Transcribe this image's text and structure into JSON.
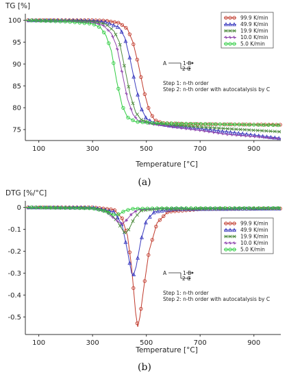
{
  "chart_data": [
    {
      "type": "line",
      "panel_label": "(a)",
      "ylabel": "TG [%]",
      "xlabel": "Temperature [°C]",
      "xlim": [
        50,
        1000
      ],
      "ylim": [
        72.5,
        101.5
      ],
      "xticks": [
        100,
        300,
        500,
        700,
        900
      ],
      "yticks": [
        75,
        80,
        85,
        90,
        95,
        100
      ],
      "legend_position": "top-right",
      "annotation": {
        "scheme_a": "A",
        "scheme_b": "1 B",
        "scheme_c": "2 C",
        "step1": "Step 1: n-th order",
        "step2": "Step 2: n-th order with autocatalysis by C"
      },
      "series": [
        {
          "name": "99.9 K/min",
          "color": "#c0392b",
          "marker": "circle",
          "points": [
            [
              50,
              100
            ],
            [
              200,
              100
            ],
            [
              300,
              100
            ],
            [
              350,
              99.9
            ],
            [
              400,
              99.4
            ],
            [
              430,
              98
            ],
            [
              450,
              95
            ],
            [
              470,
              90
            ],
            [
              490,
              84
            ],
            [
              510,
              79.5
            ],
            [
              530,
              77.2
            ],
            [
              560,
              76.5
            ],
            [
              650,
              76.3
            ],
            [
              800,
              76.2
            ],
            [
              1000,
              76.1
            ]
          ]
        },
        {
          "name": "49.9 K/min",
          "color": "#3b3bbf",
          "marker": "triangle",
          "points": [
            [
              50,
              100
            ],
            [
              200,
              100
            ],
            [
              300,
              99.9
            ],
            [
              350,
              99.6
            ],
            [
              400,
              98.3
            ],
            [
              420,
              96
            ],
            [
              440,
              91
            ],
            [
              460,
              85
            ],
            [
              480,
              80
            ],
            [
              500,
              77.5
            ],
            [
              530,
              76.5
            ],
            [
              600,
              75.8
            ],
            [
              700,
              75.2
            ],
            [
              800,
              74.5
            ],
            [
              1000,
              73
            ]
          ]
        },
        {
          "name": "19.9 K/min",
          "color": "#4c8a3c",
          "marker": "cross",
          "points": [
            [
              50,
              100
            ],
            [
              200,
              99.9
            ],
            [
              300,
              99.7
            ],
            [
              350,
              99.1
            ],
            [
              380,
              97.5
            ],
            [
              400,
              95
            ],
            [
              420,
              89
            ],
            [
              440,
              83
            ],
            [
              460,
              79
            ],
            [
              480,
              77.3
            ],
            [
              520,
              76.4
            ],
            [
              600,
              76
            ],
            [
              700,
              75.6
            ],
            [
              800,
              75.2
            ],
            [
              1000,
              74.5
            ]
          ]
        },
        {
          "name": "10.0 K/min",
          "color": "#8e44ad",
          "marker": "star",
          "points": [
            [
              50,
              100
            ],
            [
              200,
              99.8
            ],
            [
              300,
              99.5
            ],
            [
              340,
              98.8
            ],
            [
              370,
              97
            ],
            [
              390,
              94
            ],
            [
              410,
              88
            ],
            [
              430,
              82
            ],
            [
              450,
              78.5
            ],
            [
              470,
              77
            ],
            [
              520,
              76.3
            ],
            [
              600,
              75.6
            ],
            [
              700,
              74.8
            ],
            [
              800,
              73.9
            ],
            [
              1000,
              72.9
            ]
          ]
        },
        {
          "name": "5.0 K/min",
          "color": "#2ecc40",
          "marker": "circle",
          "points": [
            [
              50,
              100
            ],
            [
              200,
              99.7
            ],
            [
              300,
              99.2
            ],
            [
              330,
              98.3
            ],
            [
              350,
              96.5
            ],
            [
              370,
              93
            ],
            [
              390,
              86
            ],
            [
              410,
              80.5
            ],
            [
              430,
              77.8
            ],
            [
              460,
              76.8
            ],
            [
              520,
              76.5
            ],
            [
              600,
              76.4
            ],
            [
              800,
              76.2
            ],
            [
              1000,
              76
            ]
          ]
        }
      ]
    },
    {
      "type": "line",
      "panel_label": "(b)",
      "ylabel": "DTG [%/°C]",
      "xlabel": "Temperature [°C]",
      "xlim": [
        50,
        1000
      ],
      "ylim": [
        -0.58,
        0.03
      ],
      "xticks": [
        100,
        300,
        500,
        700,
        900
      ],
      "yticks": [
        0,
        -0.1,
        -0.2,
        -0.3,
        -0.4,
        -0.5
      ],
      "ytick_labels": [
        "0",
        "-0.1",
        "-0.2",
        "-0.3",
        "-0.4",
        "-0.5"
      ],
      "legend_position": "center-right",
      "annotation": {
        "scheme_a": "A",
        "scheme_b": "1 B",
        "scheme_c": "2 C",
        "step1": "Step 1: n-th order",
        "step2": "Step 2: n-th order with autocatalysis by C"
      },
      "series": [
        {
          "name": "99.9 K/min",
          "color": "#c0392b",
          "marker": "circle",
          "points": [
            [
              50,
              0
            ],
            [
              300,
              0
            ],
            [
              380,
              -0.01
            ],
            [
              410,
              -0.05
            ],
            [
              430,
              -0.13
            ],
            [
              445,
              -0.27
            ],
            [
              460,
              -0.48
            ],
            [
              468,
              -0.545
            ],
            [
              476,
              -0.5
            ],
            [
              490,
              -0.37
            ],
            [
              510,
              -0.2
            ],
            [
              540,
              -0.07
            ],
            [
              580,
              -0.02
            ],
            [
              700,
              -0.008
            ],
            [
              1000,
              -0.005
            ]
          ]
        },
        {
          "name": "49.9 K/min",
          "color": "#3b3bbf",
          "marker": "triangle",
          "points": [
            [
              50,
              0
            ],
            [
              300,
              0
            ],
            [
              380,
              -0.02
            ],
            [
              410,
              -0.08
            ],
            [
              430,
              -0.2
            ],
            [
              445,
              -0.3
            ],
            [
              452,
              -0.31
            ],
            [
              462,
              -0.27
            ],
            [
              480,
              -0.15
            ],
            [
              500,
              -0.06
            ],
            [
              530,
              -0.02
            ],
            [
              600,
              -0.008
            ],
            [
              1000,
              -0.005
            ]
          ]
        },
        {
          "name": "19.9 K/min",
          "color": "#4c8a3c",
          "marker": "cross",
          "points": [
            [
              50,
              0
            ],
            [
              300,
              -0.003
            ],
            [
              360,
              -0.02
            ],
            [
              390,
              -0.06
            ],
            [
              410,
              -0.1
            ],
            [
              422,
              -0.12
            ],
            [
              435,
              -0.1
            ],
            [
              455,
              -0.05
            ],
            [
              480,
              -0.015
            ],
            [
              550,
              -0.006
            ],
            [
              1000,
              -0.004
            ]
          ]
        },
        {
          "name": "10.0 K/min",
          "color": "#8e44ad",
          "marker": "star",
          "points": [
            [
              50,
              0
            ],
            [
              300,
              -0.004
            ],
            [
              350,
              -0.02
            ],
            [
              380,
              -0.05
            ],
            [
              400,
              -0.07
            ],
            [
              410,
              -0.075
            ],
            [
              425,
              -0.06
            ],
            [
              445,
              -0.03
            ],
            [
              470,
              -0.01
            ],
            [
              550,
              -0.005
            ],
            [
              1000,
              -0.004
            ]
          ]
        },
        {
          "name": "5.0 K/min",
          "color": "#2ecc40",
          "marker": "circle",
          "points": [
            [
              50,
              0
            ],
            [
              300,
              -0.004
            ],
            [
              340,
              -0.015
            ],
            [
              370,
              -0.03
            ],
            [
              385,
              -0.035
            ],
            [
              400,
              -0.03
            ],
            [
              420,
              -0.015
            ],
            [
              450,
              -0.006
            ],
            [
              550,
              -0.004
            ],
            [
              1000,
              -0.003
            ]
          ]
        }
      ]
    }
  ]
}
